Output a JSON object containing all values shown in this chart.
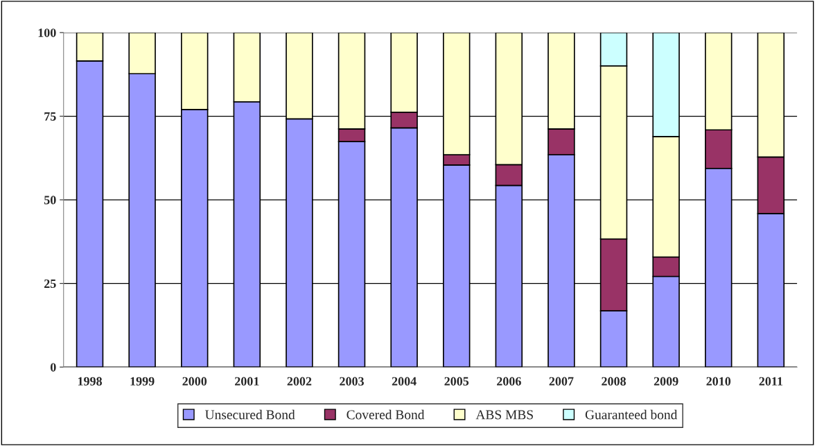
{
  "chart_data": {
    "type": "bar",
    "stacked": true,
    "categories": [
      "1998",
      "1999",
      "2000",
      "2001",
      "2002",
      "2003",
      "2004",
      "2005",
      "2006",
      "2007",
      "2008",
      "2009",
      "2010",
      "2011"
    ],
    "series": [
      {
        "name": "Unsecured Bond",
        "color": "#9999ff",
        "values": [
          91.5,
          87.7,
          77.0,
          79.3,
          74.2,
          67.4,
          71.5,
          60.4,
          54.3,
          63.5,
          16.8,
          27.1,
          59.4,
          45.9
        ]
      },
      {
        "name": "Covered Bond",
        "color": "#993366",
        "values": [
          null,
          null,
          null,
          null,
          null,
          3.8,
          4.7,
          3.1,
          6.2,
          7.7,
          21.5,
          5.8,
          11.5,
          16.9
        ]
      },
      {
        "name": "ABS MBS",
        "color": "#ffffcc",
        "values": [
          8.5,
          12.3,
          23.0,
          20.7,
          25.8,
          28.8,
          23.8,
          36.5,
          39.5,
          28.8,
          51.7,
          36.0,
          29.1,
          37.2
        ]
      },
      {
        "name": "Guaranteed bond",
        "color": "#ccffff",
        "values": [
          null,
          null,
          null,
          null,
          null,
          null,
          null,
          null,
          null,
          null,
          10.0,
          31.1,
          null,
          null
        ]
      }
    ],
    "ylim": [
      0,
      100
    ],
    "yticks": [
      0,
      25,
      50,
      75,
      100
    ],
    "grid": "y",
    "legend": "bottom"
  }
}
